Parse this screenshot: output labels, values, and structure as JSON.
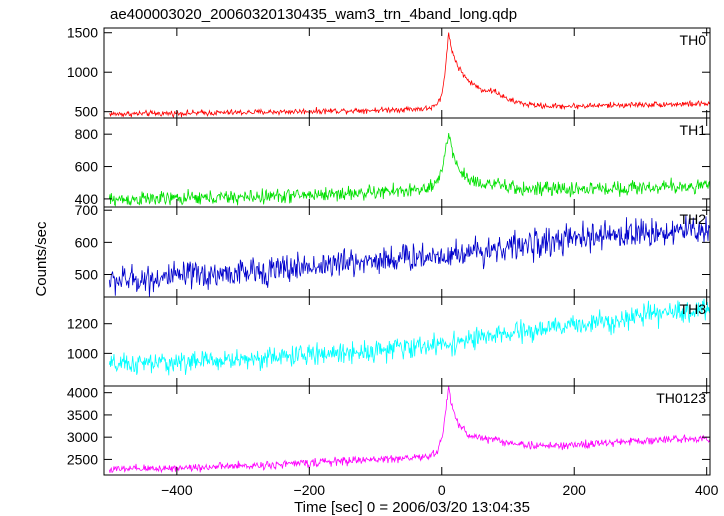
{
  "figure": {
    "title": "ae400003020_20060320130435_wam3_trn_4band_long.qdp",
    "xlabel": "Time [sec] 0 = 2006/03/20 13:04:35",
    "ylabel": "Counts/sec"
  },
  "chart_data": [
    {
      "type": "line",
      "panel": "TH0",
      "series": [
        {
          "name": "TH0",
          "color": "#ff0000"
        }
      ],
      "xlim": [
        -510,
        405
      ],
      "ylim": [
        420,
        1560
      ],
      "yticks": [
        500,
        1000,
        1500
      ],
      "xticks": [
        -400,
        -200,
        0,
        200,
        400
      ],
      "profile": {
        "x": [
          -500,
          -300,
          -100,
          -20,
          -8,
          0,
          5,
          10,
          15,
          25,
          40,
          60,
          80,
          100,
          130,
          160,
          200,
          300,
          400
        ],
        "y": [
          470,
          490,
          520,
          540,
          580,
          700,
          1000,
          1500,
          1280,
          1060,
          890,
          780,
          760,
          650,
          590,
          570,
          570,
          590,
          600
        ]
      },
      "noise": 18
    },
    {
      "type": "line",
      "panel": "TH1",
      "series": [
        {
          "name": "TH1",
          "color": "#00e000"
        }
      ],
      "xlim": [
        -510,
        405
      ],
      "ylim": [
        350,
        900
      ],
      "yticks": [
        400,
        600,
        800
      ],
      "xticks": [
        -400,
        -200,
        0,
        200,
        400
      ],
      "profile": {
        "x": [
          -500,
          -300,
          -100,
          -20,
          -8,
          0,
          5,
          10,
          15,
          25,
          40,
          60,
          80,
          100,
          130,
          160,
          200,
          300,
          400
        ],
        "y": [
          395,
          410,
          440,
          460,
          490,
          560,
          700,
          820,
          700,
          590,
          520,
          500,
          490,
          470,
          460,
          460,
          460,
          470,
          480
        ]
      },
      "noise": 22
    },
    {
      "type": "line",
      "panel": "TH2",
      "series": [
        {
          "name": "TH2",
          "color": "#0000cc"
        }
      ],
      "xlim": [
        -510,
        405
      ],
      "ylim": [
        430,
        710
      ],
      "yticks": [
        500,
        600,
        700
      ],
      "xticks": [
        -400,
        -200,
        0,
        200,
        400
      ],
      "profile": {
        "x": [
          -500,
          -300,
          -100,
          0,
          100,
          200,
          300,
          400
        ],
        "y": [
          480,
          505,
          545,
          560,
          585,
          610,
          630,
          640
        ]
      },
      "noise": 22
    },
    {
      "type": "line",
      "panel": "TH3",
      "series": [
        {
          "name": "TH3",
          "color": "#00ffff"
        }
      ],
      "xlim": [
        -510,
        405
      ],
      "ylim": [
        780,
        1380
      ],
      "yticks": [
        1000,
        1200
      ],
      "xticks": [
        -400,
        -200,
        0,
        200,
        400
      ],
      "profile": {
        "x": [
          -500,
          -300,
          -100,
          0,
          100,
          200,
          300,
          400
        ],
        "y": [
          920,
          960,
          1020,
          1060,
          1130,
          1190,
          1250,
          1300
        ]
      },
      "noise": 35
    },
    {
      "type": "line",
      "panel": "TH0123",
      "series": [
        {
          "name": "TH0123",
          "color": "#ff00ff"
        }
      ],
      "xlim": [
        -510,
        405
      ],
      "ylim": [
        2150,
        4150
      ],
      "yticks": [
        2500,
        3000,
        3500,
        4000
      ],
      "xticks": [
        -400,
        -200,
        0,
        200,
        400
      ],
      "profile": {
        "x": [
          -500,
          -300,
          -100,
          -20,
          -8,
          0,
          5,
          10,
          15,
          25,
          40,
          60,
          80,
          100,
          130,
          160,
          200,
          300,
          400
        ],
        "y": [
          2270,
          2350,
          2500,
          2560,
          2650,
          2950,
          3500,
          4100,
          3700,
          3300,
          3050,
          2980,
          2950,
          2880,
          2820,
          2800,
          2820,
          2920,
          2980
        ]
      },
      "noise": 45
    }
  ]
}
